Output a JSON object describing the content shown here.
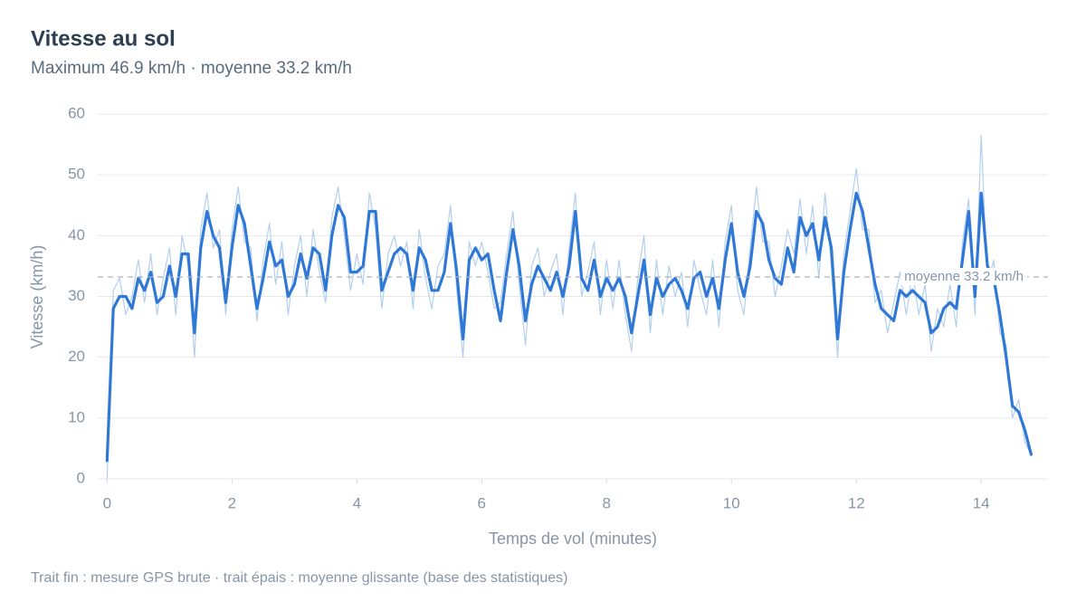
{
  "chart_data": {
    "type": "line",
    "title": "Vitesse au sol",
    "subtitle": "Maximum 46.9 km/h · moyenne 33.2 km/h",
    "xlabel": "Temps de vol (minutes)",
    "ylabel": "Vitesse (km/h)",
    "footnote": "Trait fin : mesure GPS brute · trait épais : moyenne glissante (base des statistiques)",
    "x": [
      0,
      0.1,
      0.2,
      0.3,
      0.4,
      0.5,
      0.6,
      0.7,
      0.8,
      0.9,
      1,
      1.1,
      1.2,
      1.3,
      1.4,
      1.5,
      1.6,
      1.7,
      1.8,
      1.9,
      2,
      2.1,
      2.2,
      2.3,
      2.4,
      2.5,
      2.6,
      2.7,
      2.8,
      2.9,
      3,
      3.1,
      3.2,
      3.3,
      3.4,
      3.5,
      3.6,
      3.7,
      3.8,
      3.9,
      4,
      4.1,
      4.2,
      4.3,
      4.4,
      4.5,
      4.6,
      4.7,
      4.8,
      4.9,
      5,
      5.1,
      5.2,
      5.3,
      5.4,
      5.5,
      5.6,
      5.7,
      5.8,
      5.9,
      6,
      6.1,
      6.2,
      6.3,
      6.4,
      6.5,
      6.6,
      6.7,
      6.8,
      6.9,
      7,
      7.1,
      7.2,
      7.3,
      7.4,
      7.5,
      7.6,
      7.7,
      7.8,
      7.9,
      8,
      8.1,
      8.2,
      8.3,
      8.4,
      8.5,
      8.6,
      8.7,
      8.8,
      8.9,
      9,
      9.1,
      9.2,
      9.3,
      9.4,
      9.5,
      9.6,
      9.7,
      9.8,
      9.9,
      10,
      10.1,
      10.2,
      10.3,
      10.4,
      10.5,
      10.6,
      10.7,
      10.8,
      10.9,
      11,
      11.1,
      11.2,
      11.3,
      11.4,
      11.5,
      11.6,
      11.7,
      11.8,
      11.9,
      12,
      12.1,
      12.2,
      12.3,
      12.4,
      12.5,
      12.6,
      12.7,
      12.8,
      12.9,
      13,
      13.1,
      13.2,
      13.3,
      13.4,
      13.5,
      13.6,
      13.7,
      13.8,
      13.9,
      14,
      14.1,
      14.2,
      14.3,
      14.4,
      14.5,
      14.6,
      14.7,
      14.8
    ],
    "series": [
      {
        "color": "#b3cfee",
        "width": 1.2,
        "values": [
          0,
          31,
          33,
          27,
          30,
          36,
          29,
          37,
          27,
          33,
          38,
          27,
          40,
          35,
          20,
          41,
          47,
          38,
          41,
          27,
          41,
          48,
          39,
          38,
          26,
          36,
          42,
          32,
          39,
          27,
          35,
          40,
          30,
          41,
          34,
          29,
          43,
          48,
          40,
          31,
          37,
          32,
          47,
          41,
          28,
          37,
          40,
          35,
          39,
          28,
          41,
          33,
          28,
          35,
          37,
          45,
          31,
          20,
          39,
          35,
          39,
          34,
          28,
          29,
          37,
          44,
          32,
          22,
          35,
          38,
          30,
          34,
          37,
          27,
          38,
          47,
          30,
          34,
          39,
          27,
          36,
          28,
          36,
          27,
          21,
          33,
          40,
          24,
          36,
          27,
          35,
          30,
          34,
          25,
          36,
          31,
          27,
          36,
          25,
          39,
          45,
          31,
          27,
          38,
          48,
          39,
          39,
          30,
          35,
          41,
          37,
          46,
          37,
          45,
          33,
          47,
          35,
          20,
          37,
          44,
          51,
          41,
          41,
          29,
          31,
          24,
          29,
          34,
          27,
          34,
          27,
          32,
          21,
          28,
          25,
          32,
          25,
          39,
          46,
          27,
          56.5,
          32,
          36,
          24,
          22,
          10,
          13,
          6,
          4
        ]
      },
      {
        "color": "#2f78d6",
        "width": 3.2,
        "values": [
          3,
          28,
          30,
          30,
          28,
          33,
          31,
          34,
          29,
          30,
          35,
          30,
          37,
          37,
          24,
          38,
          44,
          40,
          38,
          29,
          38,
          45,
          42,
          35,
          28,
          33,
          39,
          35,
          36,
          30,
          32,
          37,
          33,
          38,
          37,
          31,
          40,
          45,
          43,
          34,
          34,
          35,
          44,
          44,
          31,
          34,
          37,
          38,
          37,
          31,
          38,
          36,
          31,
          31,
          34,
          42,
          34,
          23,
          36,
          38,
          36,
          37,
          31,
          26,
          34,
          41,
          35,
          26,
          32,
          35,
          33,
          31,
          34,
          30,
          35,
          44,
          33,
          31,
          36,
          30,
          33,
          31,
          33,
          30,
          24,
          30,
          36,
          27,
          33,
          30,
          32,
          33,
          31,
          28,
          33,
          34,
          30,
          33,
          28,
          36,
          42,
          34,
          30,
          35,
          44,
          42,
          36,
          33,
          32,
          38,
          34,
          43,
          40,
          42,
          36,
          43,
          38,
          23,
          34,
          41,
          47,
          44,
          38,
          32,
          28,
          27,
          26,
          31,
          30,
          31,
          30,
          29,
          24,
          25,
          28,
          29,
          28,
          36,
          44,
          30,
          47,
          35,
          33,
          27,
          20,
          12,
          11,
          8,
          4
        ]
      }
    ],
    "mean": 33.2,
    "mean_label": "moyenne 33.2 km/h",
    "xlim": [
      -0.15,
      15.07
    ],
    "ylim": [
      0,
      60
    ],
    "xticks": [
      0,
      2,
      4,
      6,
      8,
      10,
      12,
      14
    ],
    "yticks": [
      0,
      10,
      20,
      30,
      40,
      50,
      60
    ],
    "grid": true
  }
}
